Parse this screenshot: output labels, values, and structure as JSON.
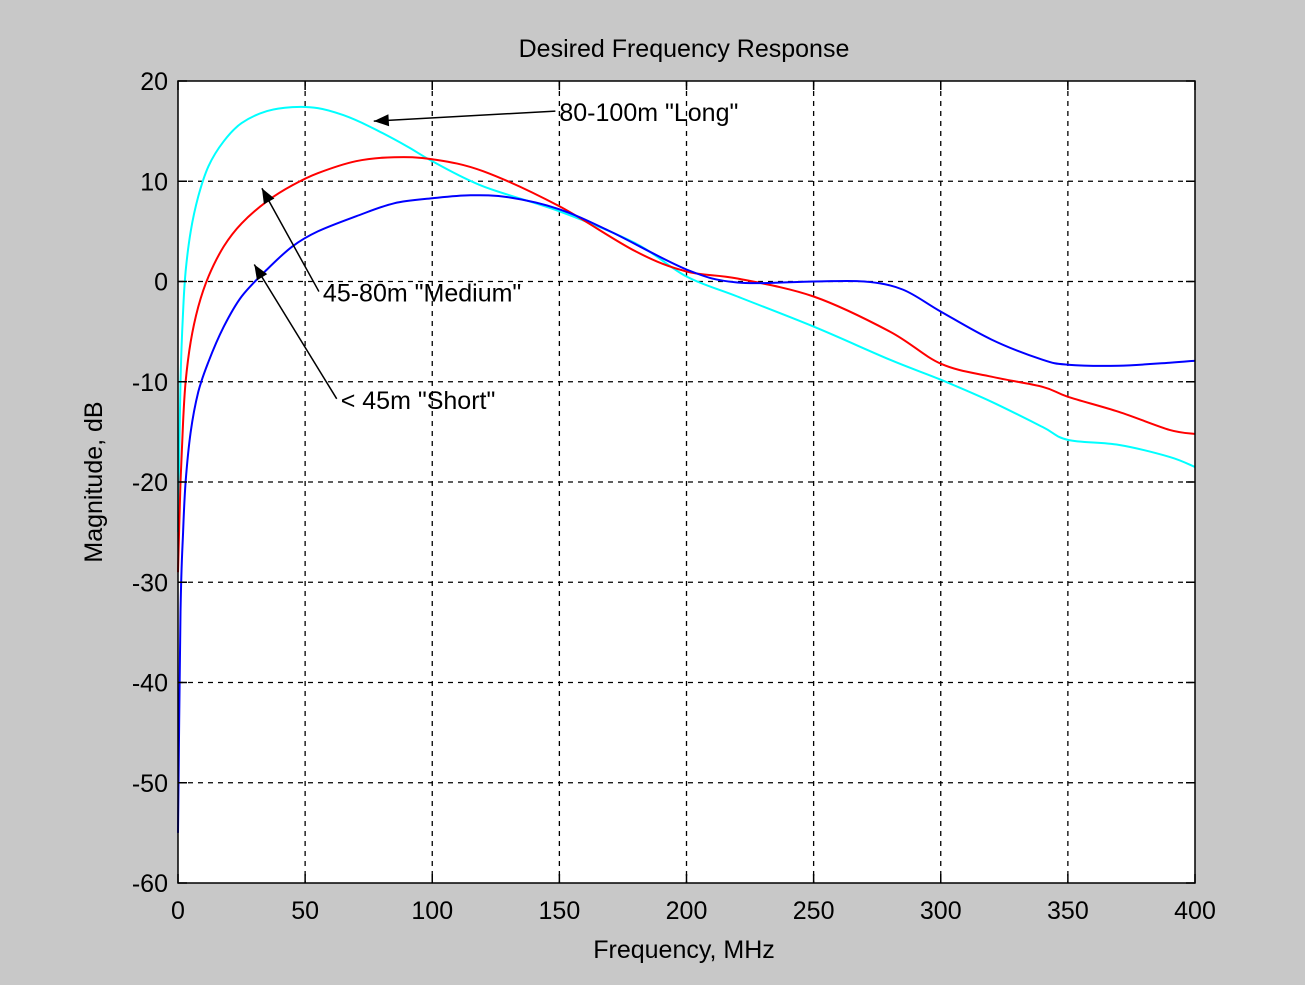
{
  "chart_data": {
    "type": "line",
    "title": "Desired Frequency Response",
    "xlabel": "Frequency, MHz",
    "ylabel": "Magnitude, dB",
    "xlim": [
      0,
      400
    ],
    "ylim": [
      -60,
      20
    ],
    "xticks": [
      0,
      50,
      100,
      150,
      200,
      250,
      300,
      350,
      400
    ],
    "yticks": [
      -60,
      -50,
      -40,
      -30,
      -20,
      -10,
      0,
      10,
      20
    ],
    "xtick_labels": [
      "0",
      "50",
      "100",
      "150",
      "200",
      "250",
      "300",
      "350",
      "400"
    ],
    "ytick_labels": [
      "-60",
      "-50",
      "-40",
      "-30",
      "-20",
      "-10",
      "0",
      "10",
      "20"
    ],
    "grid": true,
    "background": "#c8c8c8",
    "plot_background": "#ffffff",
    "series": [
      {
        "name": "",
        "color": "#00ffff",
        "x": [
          0,
          1,
          2,
          3,
          5,
          8,
          12,
          18,
          25,
          35,
          45,
          55,
          65,
          75,
          90,
          100,
          120,
          150,
          180,
          200,
          220,
          250,
          280,
          300,
          320,
          340,
          350,
          370,
          390,
          400
        ],
        "y": [
          -25,
          -10,
          -3,
          1,
          5,
          8.5,
          11.5,
          14,
          15.8,
          17,
          17.4,
          17.3,
          16.6,
          15.5,
          13.5,
          12,
          9.5,
          7,
          3.8,
          0.5,
          -1.5,
          -4.5,
          -7.8,
          -9.8,
          -12,
          -14.5,
          -15.8,
          -16.3,
          -17.5,
          -18.5
        ]
      },
      {
        "name": "",
        "color": "#ff0000",
        "x": [
          0,
          1,
          2,
          3,
          5,
          8,
          12,
          18,
          25,
          35,
          45,
          55,
          70,
          85,
          100,
          120,
          150,
          180,
          200,
          220,
          250,
          280,
          300,
          320,
          340,
          350,
          370,
          390,
          400
        ],
        "y": [
          -29,
          -20,
          -14,
          -10,
          -6,
          -2.5,
          0.5,
          3.5,
          5.8,
          8,
          9.6,
          10.8,
          12,
          12.4,
          12.2,
          11,
          7.5,
          3,
          1,
          0.3,
          -1.5,
          -5,
          -8.2,
          -9.5,
          -10.5,
          -11.5,
          -13,
          -14.8,
          -15.2
        ]
      },
      {
        "name": "",
        "color": "#0000ff",
        "x": [
          0,
          1,
          2,
          3,
          5,
          8,
          12,
          18,
          25,
          35,
          45,
          55,
          70,
          85,
          100,
          115,
          130,
          150,
          170,
          200,
          220,
          250,
          270,
          285,
          300,
          320,
          340,
          350,
          370,
          390,
          400
        ],
        "y": [
          -55,
          -33,
          -25,
          -20,
          -15,
          -11,
          -8,
          -4.5,
          -1.5,
          1.2,
          3.5,
          5,
          6.5,
          7.8,
          8.3,
          8.6,
          8.4,
          7.2,
          5,
          1.2,
          -0.1,
          0,
          0,
          -0.8,
          -3,
          -5.8,
          -7.8,
          -8.3,
          -8.4,
          -8.1,
          -7.9
        ]
      }
    ],
    "annotations": [
      {
        "text": "80-100m \"Long\"",
        "x": 150,
        "y": 16,
        "arrow_to": [
          77,
          16
        ]
      },
      {
        "text": "45-80m \"Medium\"",
        "x": 57,
        "y": -2,
        "arrow_to": [
          33,
          9.3
        ]
      },
      {
        "text": "< 45m \"Short\"",
        "x": 64,
        "y": -12.7,
        "arrow_to": [
          30,
          1.7
        ]
      }
    ]
  }
}
